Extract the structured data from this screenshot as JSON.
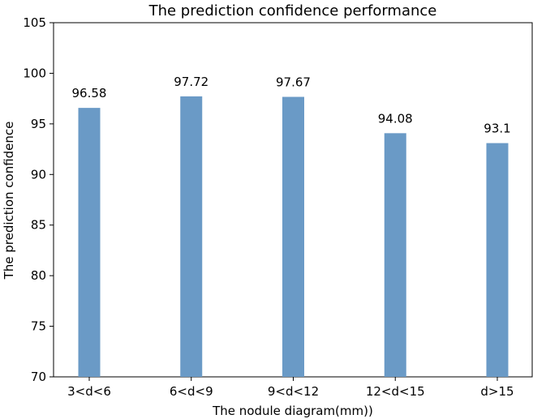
{
  "chart_data": {
    "type": "bar",
    "title": "The prediction confidence performance",
    "xlabel": "The nodule diagram(mm))",
    "ylabel": "The prediction confidence",
    "categories": [
      "3<d<6",
      "6<d<9",
      "9<d<12",
      "12<d<15",
      "d>15"
    ],
    "values": [
      96.58,
      97.72,
      97.67,
      94.08,
      93.1
    ],
    "value_labels": [
      "96.58",
      "97.72",
      "97.67",
      "94.08",
      "93.1"
    ],
    "ylim": [
      70,
      105
    ],
    "yticks": [
      "70",
      "75",
      "80",
      "85",
      "90",
      "95",
      "100",
      "105"
    ],
    "bar_color": "#6a9ac6",
    "grid": false
  }
}
